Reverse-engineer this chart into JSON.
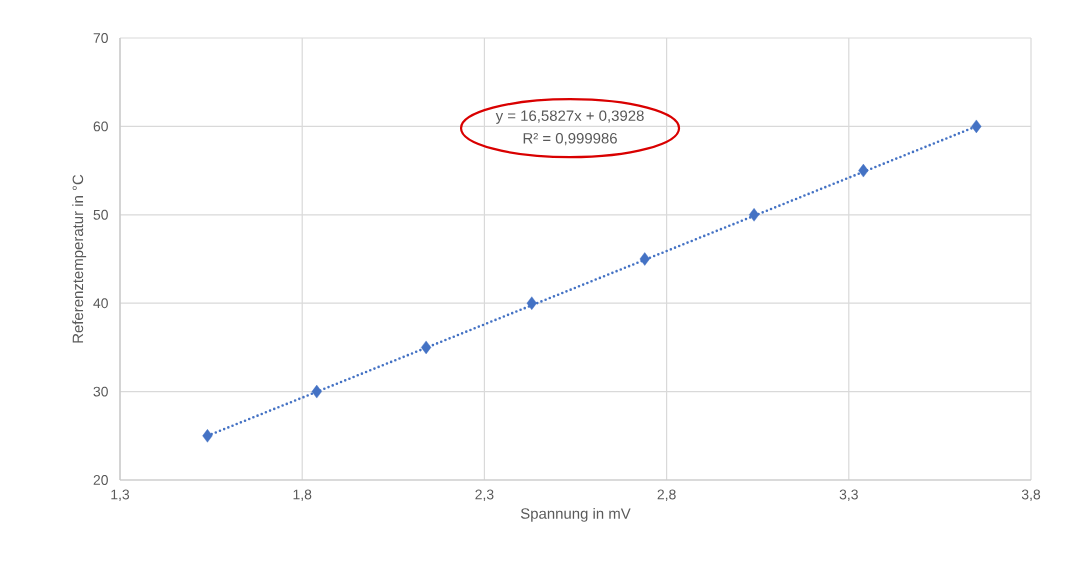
{
  "chart_data": {
    "type": "scatter",
    "xlabel": "Spannung in mV",
    "ylabel": "Referenztemperatur in °C",
    "annotations": [
      "y = 16,5827x + 0,3928",
      "R² = 0,999986"
    ],
    "xlim": [
      1.3,
      3.8
    ],
    "ylim": [
      20,
      70
    ],
    "xticks": [
      {
        "value": 1.3,
        "label": "1,3"
      },
      {
        "value": 1.8,
        "label": "1,8"
      },
      {
        "value": 2.3,
        "label": "2,3"
      },
      {
        "value": 2.8,
        "label": "2,8"
      },
      {
        "value": 3.3,
        "label": "3,3"
      },
      {
        "value": 3.8,
        "label": "3,8"
      }
    ],
    "yticks": [
      20,
      30,
      40,
      50,
      60,
      70
    ],
    "grid": true,
    "series": [
      {
        "color": "#4472c4",
        "marker": "diamond",
        "x": [
          1.54,
          1.84,
          2.14,
          2.43,
          2.74,
          3.04,
          3.34,
          3.65
        ],
        "values": [
          25,
          30,
          35,
          40,
          45,
          50,
          55,
          60
        ]
      },
      {
        "type": "line",
        "color": "#4472c4",
        "line_style": "dotted",
        "marker": "none",
        "x": [
          1.54,
          3.65
        ],
        "values": [
          25,
          60
        ]
      }
    ]
  }
}
